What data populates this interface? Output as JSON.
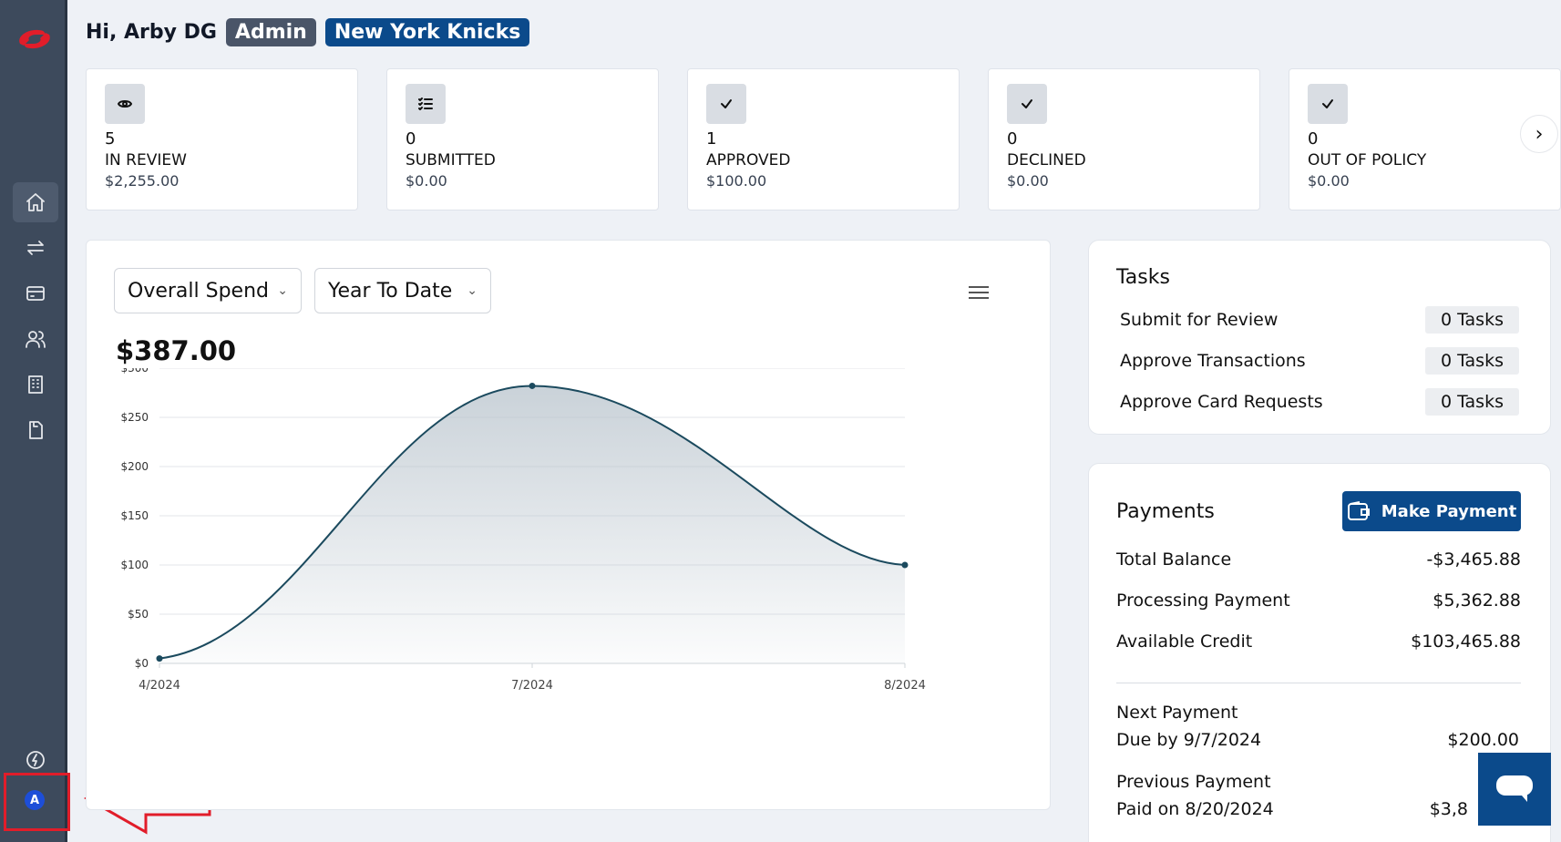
{
  "header": {
    "greeting": "Hi, Arby DG",
    "role_badge": "Admin",
    "team_badge": "New York Knicks"
  },
  "sidebar": {
    "avatar_letter": "A",
    "items": [
      {
        "name": "home-icon"
      },
      {
        "name": "transfer-icon"
      },
      {
        "name": "card-icon"
      },
      {
        "name": "users-icon"
      },
      {
        "name": "building-icon"
      },
      {
        "name": "receipt-icon"
      },
      {
        "name": "bolt-icon"
      }
    ]
  },
  "stats": [
    {
      "icon": "eye-icon",
      "count": "5",
      "label": "IN REVIEW",
      "amount": "$2,255.00"
    },
    {
      "icon": "checklist-icon",
      "count": "0",
      "label": "SUBMITTED",
      "amount": "$0.00"
    },
    {
      "icon": "check-icon",
      "count": "1",
      "label": "APPROVED",
      "amount": "$100.00"
    },
    {
      "icon": "check-icon",
      "count": "0",
      "label": "DECLINED",
      "amount": "$0.00"
    },
    {
      "icon": "check-icon",
      "count": "0",
      "label": "OUT OF POLICY",
      "amount": "$0.00"
    }
  ],
  "spend": {
    "metric_select": "Overall Spend",
    "period_select": "Year To Date",
    "total": "$387.00"
  },
  "chart_data": {
    "type": "area",
    "x": [
      "4/2024",
      "7/2024",
      "8/2024"
    ],
    "values": [
      5,
      282,
      100
    ],
    "y_ticks": [
      "$0",
      "$50",
      "$100",
      "$150",
      "$200",
      "$250",
      "$300"
    ],
    "ylim": [
      0,
      300
    ],
    "grid": true,
    "colors": {
      "line": "#1b4a5e",
      "fill": "#b8c3cc"
    }
  },
  "tasks": {
    "title": "Tasks",
    "items": [
      {
        "label": "Submit for Review",
        "count": "0 Tasks"
      },
      {
        "label": "Approve Transactions",
        "count": "0 Tasks"
      },
      {
        "label": "Approve Card Requests",
        "count": "0 Tasks"
      }
    ]
  },
  "payments": {
    "title": "Payments",
    "button_label": "Make Payment",
    "rows": [
      {
        "label": "Total Balance",
        "value": "-$3,465.88"
      },
      {
        "label": "Processing Payment",
        "value": "$5,362.88"
      },
      {
        "label": "Available Credit",
        "value": "$103,465.88"
      }
    ],
    "next_payment_label": "Next Payment",
    "next_due": "Due by 9/7/2024",
    "next_amount": "$200.00",
    "previous_payment_label": "Previous Payment",
    "previous_paid": "Paid on 8/20/2024",
    "previous_amount": "$3,8"
  },
  "colors": {
    "sidebar_bg": "#3d4a5c",
    "brand_blue": "#0b4a8b",
    "admin_badge": "#4a5568",
    "highlight_red": "#e11d2a"
  }
}
